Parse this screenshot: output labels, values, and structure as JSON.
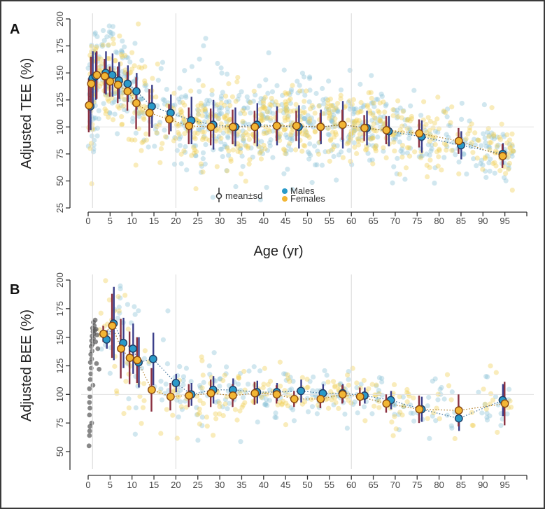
{
  "colors": {
    "males": "#2a9ac9",
    "females": "#f2b634",
    "males_cloud": "#8cc3d6",
    "females_cloud": "#f0d055",
    "infant_cloud": "#555555",
    "sd_line": "#8a3040",
    "male_sd_line": "#3b3f8a",
    "gridline": "#d8d8d8"
  },
  "chart_data": [
    {
      "panel": "A",
      "type": "scatter",
      "title": "",
      "xlabel": "Age (yr)",
      "ylabel": "Adjusted TEE (%)",
      "xlim": [
        0,
        100
      ],
      "ylim": [
        25,
        200
      ],
      "xticks": [
        0,
        5,
        10,
        15,
        20,
        25,
        30,
        35,
        40,
        45,
        50,
        55,
        60,
        65,
        70,
        75,
        80,
        85,
        90,
        95
      ],
      "yticks": [
        25,
        50,
        75,
        100,
        125,
        150,
        175,
        200
      ],
      "vlines": [
        1,
        20,
        60
      ],
      "hline": 100,
      "legend": {
        "position": "bottom-center",
        "entries": [
          "mean±sd",
          "Males",
          "Females"
        ]
      },
      "series": [
        {
          "name": "Males",
          "points": [
            {
              "x": 0.5,
              "mean": 119,
              "sd": 22
            },
            {
              "x": 1.0,
              "mean": 145,
              "sd": 25
            },
            {
              "x": 1.7,
              "mean": 147,
              "sd": 22
            },
            {
              "x": 4.0,
              "mean": 150,
              "sd": 20
            },
            {
              "x": 5.5,
              "mean": 148,
              "sd": 20
            },
            {
              "x": 7.0,
              "mean": 143,
              "sd": 17
            },
            {
              "x": 9.0,
              "mean": 140,
              "sd": 17
            },
            {
              "x": 11.0,
              "mean": 133,
              "sd": 17
            },
            {
              "x": 14.5,
              "mean": 119,
              "sd": 20
            },
            {
              "x": 18.8,
              "mean": 113,
              "sd": 17
            },
            {
              "x": 23.5,
              "mean": 106,
              "sd": 22
            },
            {
              "x": 28.5,
              "mean": 102,
              "sd": 23
            },
            {
              "x": 33.5,
              "mean": 100,
              "sd": 18
            },
            {
              "x": 38.5,
              "mean": 102,
              "sd": 20
            },
            {
              "x": 43.0,
              "mean": 101,
              "sd": 18
            },
            {
              "x": 48.0,
              "mean": 100,
              "sd": 20
            },
            {
              "x": 53.0,
              "mean": 100,
              "sd": 16
            },
            {
              "x": 58.0,
              "mean": 102,
              "sd": 22
            },
            {
              "x": 63.5,
              "mean": 99,
              "sd": 16
            },
            {
              "x": 68.5,
              "mean": 96,
              "sd": 14
            },
            {
              "x": 76.0,
              "mean": 91,
              "sd": 15
            },
            {
              "x": 85.0,
              "mean": 83,
              "sd": 13
            },
            {
              "x": 94.5,
              "mean": 75,
              "sd": 10
            }
          ]
        },
        {
          "name": "Females",
          "points": [
            {
              "x": 0.2,
              "mean": 120,
              "sd": 25
            },
            {
              "x": 0.7,
              "mean": 140,
              "sd": 25
            },
            {
              "x": 2.0,
              "mean": 148,
              "sd": 22
            },
            {
              "x": 3.8,
              "mean": 147,
              "sd": 16
            },
            {
              "x": 5.0,
              "mean": 142,
              "sd": 14
            },
            {
              "x": 6.8,
              "mean": 139,
              "sd": 17
            },
            {
              "x": 9.0,
              "mean": 133,
              "sd": 18
            },
            {
              "x": 11.0,
              "mean": 122,
              "sd": 24
            },
            {
              "x": 14.0,
              "mean": 113,
              "sd": 22
            },
            {
              "x": 18.5,
              "mean": 107,
              "sd": 14
            },
            {
              "x": 23.0,
              "mean": 101,
              "sd": 17
            },
            {
              "x": 28.0,
              "mean": 100,
              "sd": 17
            },
            {
              "x": 33.0,
              "mean": 100,
              "sd": 16
            },
            {
              "x": 38.0,
              "mean": 100,
              "sd": 15
            },
            {
              "x": 43.0,
              "mean": 101,
              "sd": 14
            },
            {
              "x": 47.5,
              "mean": 101,
              "sd": 14
            },
            {
              "x": 53.0,
              "mean": 100,
              "sd": 13
            },
            {
              "x": 58.0,
              "mean": 102,
              "sd": 14
            },
            {
              "x": 63.0,
              "mean": 99,
              "sd": 12
            },
            {
              "x": 68.0,
              "mean": 97,
              "sd": 13
            },
            {
              "x": 75.5,
              "mean": 94,
              "sd": 13
            },
            {
              "x": 84.5,
              "mean": 87,
              "sd": 12
            },
            {
              "x": 94.5,
              "mean": 73,
              "sd": 11
            }
          ]
        }
      ]
    },
    {
      "panel": "B",
      "type": "scatter",
      "title": "",
      "xlabel": "",
      "ylabel": "Adjusted BEE (%)",
      "xlim": [
        0,
        100
      ],
      "ylim": [
        35,
        200
      ],
      "xticks": [
        0,
        5,
        10,
        15,
        20,
        25,
        30,
        35,
        40,
        45,
        50,
        55,
        60,
        65,
        70,
        75,
        80,
        85,
        90,
        95
      ],
      "yticks": [
        50,
        75,
        100,
        125,
        150,
        175,
        200
      ],
      "vlines": [
        1,
        20,
        60
      ],
      "hline": 100,
      "series": [
        {
          "name": "Males",
          "points": [
            {
              "x": 4.2,
              "mean": 148,
              "sd": 8
            },
            {
              "x": 5.8,
              "mean": 162,
              "sd": 32
            },
            {
              "x": 8.0,
              "mean": 145,
              "sd": 22
            },
            {
              "x": 10.2,
              "mean": 140,
              "sd": 22
            },
            {
              "x": 11.5,
              "mean": 128,
              "sd": 22
            },
            {
              "x": 14.8,
              "mean": 131,
              "sd": 23
            },
            {
              "x": 20.0,
              "mean": 110,
              "sd": 8
            },
            {
              "x": 23.5,
              "mean": 100,
              "sd": 10
            },
            {
              "x": 28.5,
              "mean": 104,
              "sd": 12
            },
            {
              "x": 33.0,
              "mean": 104,
              "sd": 10
            },
            {
              "x": 38.5,
              "mean": 102,
              "sd": 10
            },
            {
              "x": 43.0,
              "mean": 102,
              "sd": 8
            },
            {
              "x": 48.5,
              "mean": 103,
              "sd": 10
            },
            {
              "x": 53.5,
              "mean": 101,
              "sd": 8
            },
            {
              "x": 58.0,
              "mean": 101,
              "sd": 8
            },
            {
              "x": 63.0,
              "mean": 99,
              "sd": 7
            },
            {
              "x": 69.0,
              "mean": 95,
              "sd": 8
            },
            {
              "x": 76.0,
              "mean": 87,
              "sd": 11
            },
            {
              "x": 84.5,
              "mean": 79,
              "sd": 11
            },
            {
              "x": 94.5,
              "mean": 95,
              "sd": 14
            }
          ]
        },
        {
          "name": "Females",
          "points": [
            {
              "x": 3.5,
              "mean": 153,
              "sd": 7
            },
            {
              "x": 5.5,
              "mean": 160,
              "sd": 28
            },
            {
              "x": 7.5,
              "mean": 140,
              "sd": 26
            },
            {
              "x": 9.5,
              "mean": 132,
              "sd": 23
            },
            {
              "x": 11.2,
              "mean": 130,
              "sd": 20
            },
            {
              "x": 14.5,
              "mean": 104,
              "sd": 19
            },
            {
              "x": 18.8,
              "mean": 98,
              "sd": 12
            },
            {
              "x": 23.0,
              "mean": 99,
              "sd": 10
            },
            {
              "x": 28.0,
              "mean": 101,
              "sd": 12
            },
            {
              "x": 33.0,
              "mean": 99,
              "sd": 10
            },
            {
              "x": 38.0,
              "mean": 101,
              "sd": 10
            },
            {
              "x": 43.0,
              "mean": 100,
              "sd": 8
            },
            {
              "x": 47.0,
              "mean": 96,
              "sd": 7
            },
            {
              "x": 53.0,
              "mean": 96,
              "sd": 8
            },
            {
              "x": 58.0,
              "mean": 100,
              "sd": 8
            },
            {
              "x": 62.0,
              "mean": 98,
              "sd": 8
            },
            {
              "x": 68.0,
              "mean": 92,
              "sd": 8
            },
            {
              "x": 75.5,
              "mean": 87,
              "sd": 12
            },
            {
              "x": 84.5,
              "mean": 86,
              "sd": 14
            },
            {
              "x": 95.0,
              "mean": 92,
              "sd": 19
            }
          ]
        }
      ],
      "infant_points": [
        {
          "x": 0.2,
          "y": 55
        },
        {
          "x": 0.3,
          "y": 64
        },
        {
          "x": 0.35,
          "y": 68
        },
        {
          "x": 0.4,
          "y": 72
        },
        {
          "x": 0.3,
          "y": 82
        },
        {
          "x": 0.4,
          "y": 88
        },
        {
          "x": 0.3,
          "y": 93
        },
        {
          "x": 0.4,
          "y": 98
        },
        {
          "x": 0.3,
          "y": 105
        },
        {
          "x": 0.5,
          "y": 113
        },
        {
          "x": 0.6,
          "y": 118
        },
        {
          "x": 0.7,
          "y": 123
        },
        {
          "x": 0.5,
          "y": 128
        },
        {
          "x": 0.8,
          "y": 131
        },
        {
          "x": 0.6,
          "y": 135
        },
        {
          "x": 0.9,
          "y": 138
        },
        {
          "x": 0.7,
          "y": 142
        },
        {
          "x": 1.0,
          "y": 144
        },
        {
          "x": 0.8,
          "y": 147
        },
        {
          "x": 1.2,
          "y": 149
        },
        {
          "x": 0.9,
          "y": 151
        },
        {
          "x": 1.3,
          "y": 153
        },
        {
          "x": 1.1,
          "y": 155
        },
        {
          "x": 1.5,
          "y": 156
        },
        {
          "x": 1.0,
          "y": 158
        },
        {
          "x": 1.4,
          "y": 160
        },
        {
          "x": 1.8,
          "y": 157
        },
        {
          "x": 1.2,
          "y": 163
        },
        {
          "x": 1.6,
          "y": 165
        },
        {
          "x": 2.0,
          "y": 152
        },
        {
          "x": 2.2,
          "y": 140
        },
        {
          "x": 1.9,
          "y": 127
        },
        {
          "x": 2.5,
          "y": 122
        },
        {
          "x": 1.1,
          "y": 108
        },
        {
          "x": 0.8,
          "y": 75
        },
        {
          "x": 1.7,
          "y": 146
        }
      ]
    }
  ],
  "labels": {
    "panel_a": "A",
    "panel_b": "B",
    "legend_meansd": "mean±sd",
    "legend_males": "Males",
    "legend_females": "Females"
  }
}
